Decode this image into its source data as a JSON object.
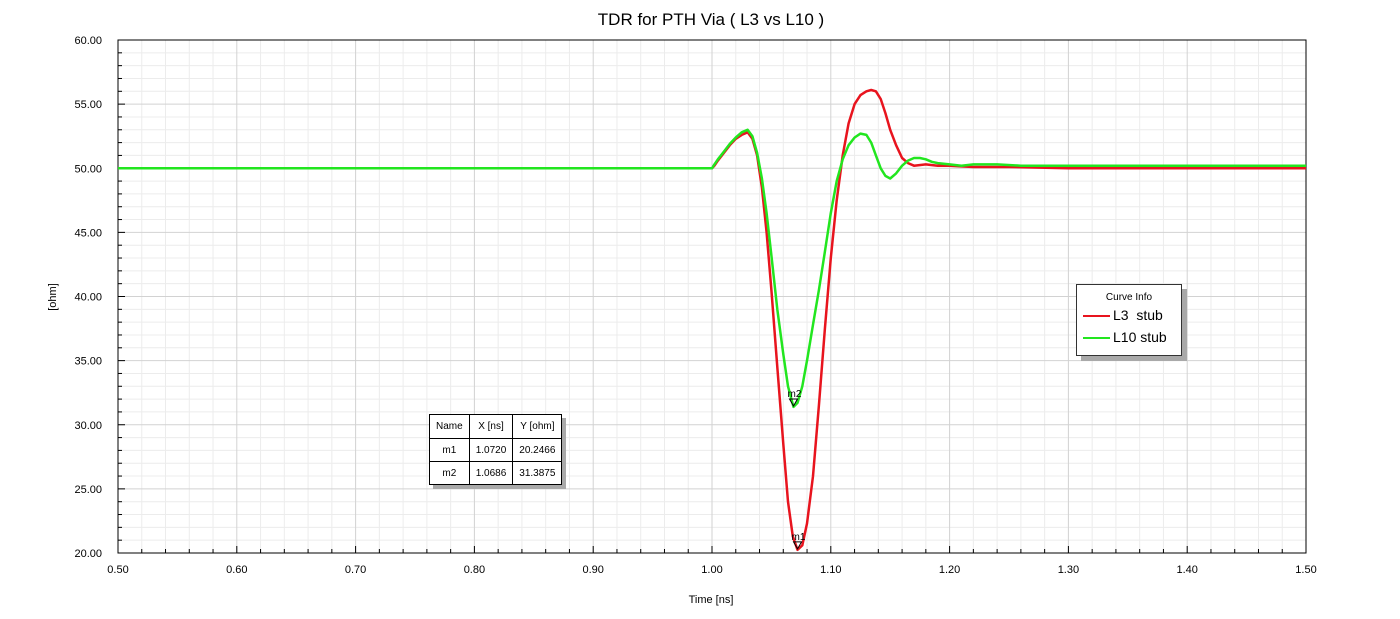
{
  "chart_data": {
    "type": "line",
    "title": "TDR for PTH Via ( L3 vs L10 )",
    "xlabel": "Time [ns]",
    "ylabel": "[ohm]",
    "xlim": [
      0.5,
      1.5
    ],
    "ylim": [
      20,
      60
    ],
    "x_ticks": [
      "0.50",
      "0.60",
      "0.70",
      "0.80",
      "0.90",
      "1.00",
      "1.10",
      "1.20",
      "1.30",
      "1.40",
      "1.50"
    ],
    "y_ticks": [
      "20.00",
      "25.00",
      "30.00",
      "35.00",
      "40.00",
      "45.00",
      "50.00",
      "55.00",
      "60.00"
    ],
    "grid": true,
    "series": [
      {
        "name": "L3  stub",
        "color": "#e8141e",
        "x": [
          0.5,
          1.0,
          1.002,
          1.005,
          1.01,
          1.015,
          1.02,
          1.025,
          1.03,
          1.034,
          1.038,
          1.042,
          1.046,
          1.05,
          1.055,
          1.06,
          1.064,
          1.068,
          1.072,
          1.076,
          1.08,
          1.085,
          1.09,
          1.095,
          1.1,
          1.105,
          1.11,
          1.115,
          1.12,
          1.125,
          1.13,
          1.134,
          1.138,
          1.142,
          1.146,
          1.15,
          1.155,
          1.16,
          1.165,
          1.17,
          1.18,
          1.19,
          1.2,
          1.22,
          1.25,
          1.3,
          1.35,
          1.4,
          1.5
        ],
        "y": [
          50.0,
          50.0,
          50.2,
          50.6,
          51.2,
          51.8,
          52.3,
          52.6,
          52.8,
          52.3,
          51.0,
          48.5,
          45.0,
          40.5,
          34.5,
          28.5,
          24.0,
          21.3,
          20.25,
          20.6,
          22.3,
          26.0,
          31.5,
          37.5,
          43.0,
          47.5,
          51.0,
          53.5,
          55.0,
          55.7,
          56.0,
          56.1,
          56.0,
          55.4,
          54.3,
          53.0,
          51.8,
          50.8,
          50.4,
          50.2,
          50.3,
          50.2,
          50.2,
          50.1,
          50.1,
          50.0,
          50.0,
          50.0,
          50.0
        ]
      },
      {
        "name": "L10 stub",
        "color": "#22e61f",
        "x": [
          0.5,
          1.0,
          1.002,
          1.005,
          1.01,
          1.015,
          1.02,
          1.025,
          1.03,
          1.034,
          1.038,
          1.042,
          1.046,
          1.05,
          1.055,
          1.06,
          1.064,
          1.0686,
          1.072,
          1.076,
          1.08,
          1.085,
          1.09,
          1.095,
          1.1,
          1.105,
          1.11,
          1.115,
          1.12,
          1.125,
          1.13,
          1.134,
          1.138,
          1.142,
          1.146,
          1.15,
          1.155,
          1.16,
          1.165,
          1.17,
          1.175,
          1.18,
          1.185,
          1.19,
          1.2,
          1.21,
          1.22,
          1.24,
          1.26,
          1.3,
          1.35,
          1.4,
          1.5
        ],
        "y": [
          50.0,
          50.0,
          50.3,
          50.7,
          51.3,
          51.9,
          52.4,
          52.8,
          53.0,
          52.5,
          51.2,
          49.2,
          46.5,
          43.2,
          39.0,
          35.5,
          33.0,
          31.39,
          31.7,
          33.0,
          35.0,
          37.8,
          40.5,
          43.5,
          46.5,
          49.0,
          50.7,
          51.8,
          52.4,
          52.7,
          52.6,
          52.0,
          51.0,
          50.0,
          49.4,
          49.2,
          49.6,
          50.2,
          50.6,
          50.8,
          50.8,
          50.7,
          50.5,
          50.4,
          50.3,
          50.2,
          50.3,
          50.3,
          50.2,
          50.2,
          50.2,
          50.2,
          50.2
        ]
      }
    ],
    "markers": [
      {
        "name": "m1",
        "x": 1.072,
        "y": 20.2466
      },
      {
        "name": "m2",
        "x": 1.0686,
        "y": 31.3875
      }
    ]
  },
  "marker_table": {
    "headers": [
      "Name",
      "X [ns]",
      "Y [ohm]"
    ],
    "rows": [
      [
        "m1",
        "1.0720",
        "20.2466"
      ],
      [
        "m2",
        "1.0686",
        "31.3875"
      ]
    ]
  },
  "legend": {
    "title": "Curve Info",
    "items": [
      {
        "label": "L3  stub",
        "color": "#e8141e"
      },
      {
        "label": "L10 stub",
        "color": "#22e61f"
      }
    ]
  }
}
